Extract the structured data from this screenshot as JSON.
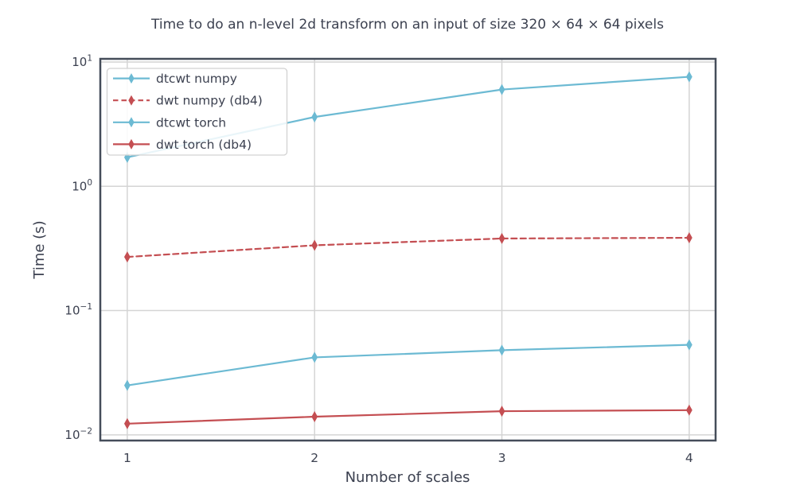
{
  "figure": {
    "title": "Time to do an n-level 2d transform on an input of size 320 × 64 × 64 pixels",
    "xlabel": "Number of scales",
    "ylabel": "Time (s)"
  },
  "colors": {
    "background": "#FFFFFF",
    "blue": "#6CBAD3",
    "red": "#C44E52",
    "grid": "#D4D4D4",
    "spine": "#454D5A",
    "text": "#3C4150",
    "legend_border": "#D2D2D2",
    "legend_fill_rgba": "rgba(255,255,255,0.85)"
  },
  "axes": {
    "x_ticks": [
      "1",
      "2",
      "3",
      "4"
    ],
    "y_ticks": [
      {
        "base": "10",
        "exp": "1",
        "value": 10
      },
      {
        "base": "10",
        "exp": "0",
        "value": 1
      },
      {
        "base": "10",
        "exp": "−1",
        "value": 0.1
      },
      {
        "base": "10",
        "exp": "−2",
        "value": 0.01
      }
    ]
  },
  "legend": {
    "entries": [
      {
        "label": "dtcwt numpy",
        "color": "#6CBAD3",
        "style": "solid"
      },
      {
        "label": "dwt numpy (db4)",
        "color": "#C44E52",
        "style": "dashed"
      },
      {
        "label": "dtcwt torch",
        "color": "#6CBAD3",
        "style": "solid"
      },
      {
        "label": "dwt torch (db4)",
        "color": "#C44E52",
        "style": "solid"
      }
    ],
    "position": "upper left"
  },
  "chart_data": {
    "type": "line",
    "title": "Time to do an n-level 2d transform on an input of size 320 × 64 × 64 pixels",
    "xlabel": "Number of scales",
    "ylabel": "Time (s)",
    "x": [
      1,
      2,
      3,
      4
    ],
    "x_scale": "linear",
    "y_scale": "log",
    "xlim": [
      0.856,
      4.141
    ],
    "ylim": [
      0.009,
      10.6
    ],
    "grid": true,
    "legend_position": "upper left",
    "series": [
      {
        "name": "dtcwt numpy",
        "color": "#6CBAD3",
        "style": "solid",
        "marker": "thin-diamond",
        "values": [
          1.71,
          3.61,
          6.0,
          7.6
        ]
      },
      {
        "name": "dwt numpy (db4)",
        "color": "#C44E52",
        "style": "dashed",
        "marker": "thin-diamond",
        "values": [
          0.27,
          0.335,
          0.38,
          0.385
        ]
      },
      {
        "name": "dtcwt torch",
        "color": "#6CBAD3",
        "style": "solid",
        "marker": "thin-diamond",
        "values": [
          0.025,
          0.042,
          0.048,
          0.053
        ]
      },
      {
        "name": "dwt torch (db4)",
        "color": "#C44E52",
        "style": "solid",
        "marker": "thin-diamond",
        "values": [
          0.0123,
          0.014,
          0.0155,
          0.0158
        ]
      }
    ]
  }
}
